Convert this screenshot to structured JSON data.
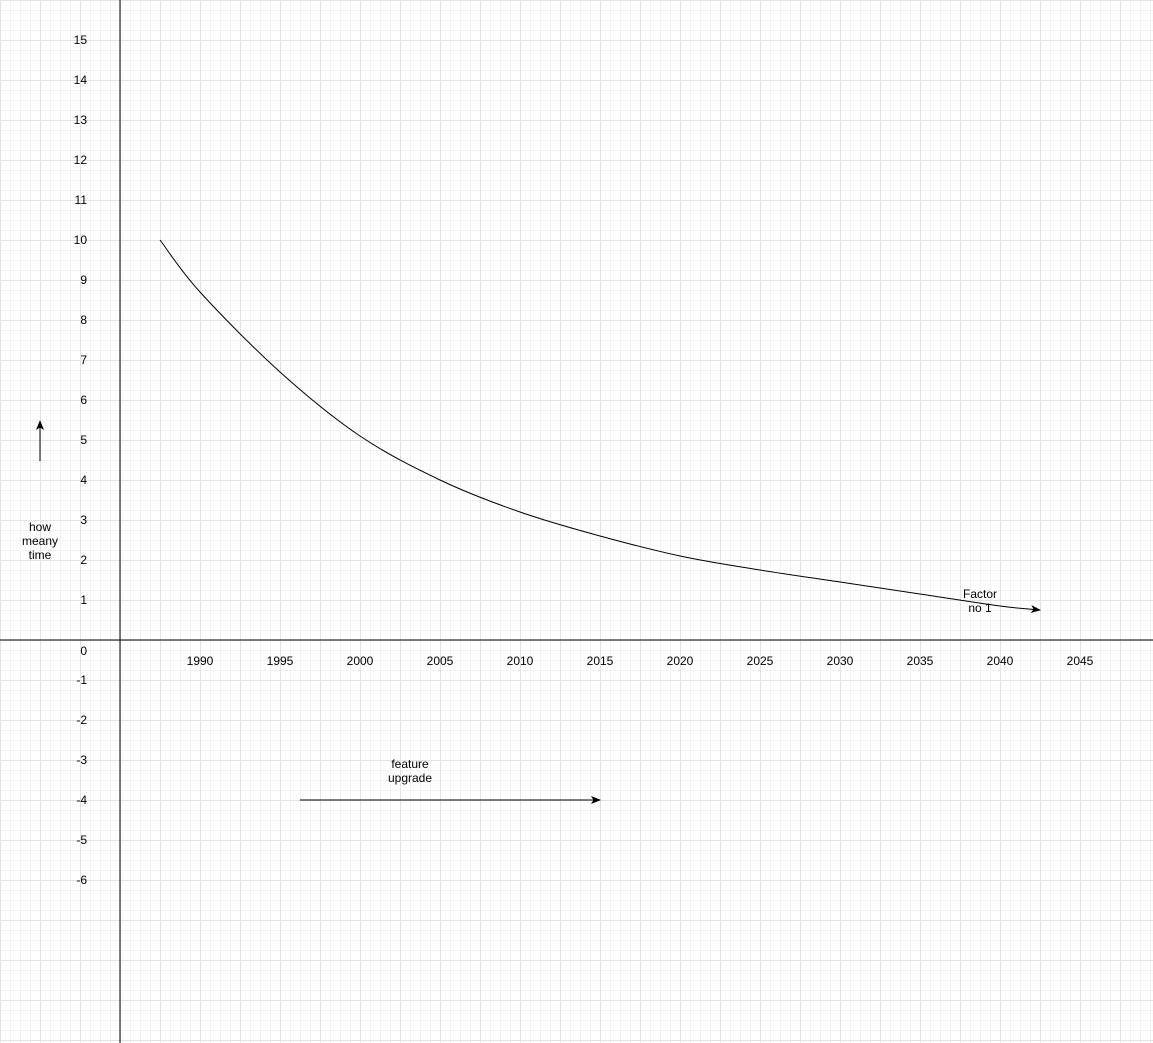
{
  "chart_data": {
    "type": "line",
    "title": "",
    "xlabel": "feature upgrade",
    "ylabel": "how meany time",
    "x_ticks": [
      "1990",
      "1995",
      "2000",
      "2005",
      "2010",
      "2015",
      "2020",
      "2025",
      "2030",
      "2035",
      "2040",
      "2045"
    ],
    "y_ticks": [
      "15",
      "14",
      "13",
      "12",
      "11",
      "10",
      "9",
      "8",
      "7",
      "6",
      "5",
      "4",
      "3",
      "2",
      "1",
      "0",
      "-1",
      "-2",
      "-3",
      "-4",
      "-5",
      "-6"
    ],
    "xlim": [
      1985,
      2045
    ],
    "ylim": [
      -6,
      15
    ],
    "grid": true,
    "series": [
      {
        "name": "Factor no 1",
        "x": [
          1987.5,
          1990,
          1995,
          2000,
          2005,
          2010,
          2015,
          2020,
          2025,
          2030,
          2035,
          2040,
          2042.5
        ],
        "y": [
          10,
          8.7,
          6.7,
          5.1,
          4.0,
          3.2,
          2.6,
          2.1,
          1.75,
          1.45,
          1.15,
          0.85,
          0.75
        ]
      }
    ]
  },
  "annotations": {
    "ylabel_lines": [
      "how",
      "meany",
      "time"
    ],
    "xlabel_lines": [
      "feature",
      "upgrade"
    ],
    "series_label_lines": [
      "Factor",
      "no 1"
    ]
  }
}
